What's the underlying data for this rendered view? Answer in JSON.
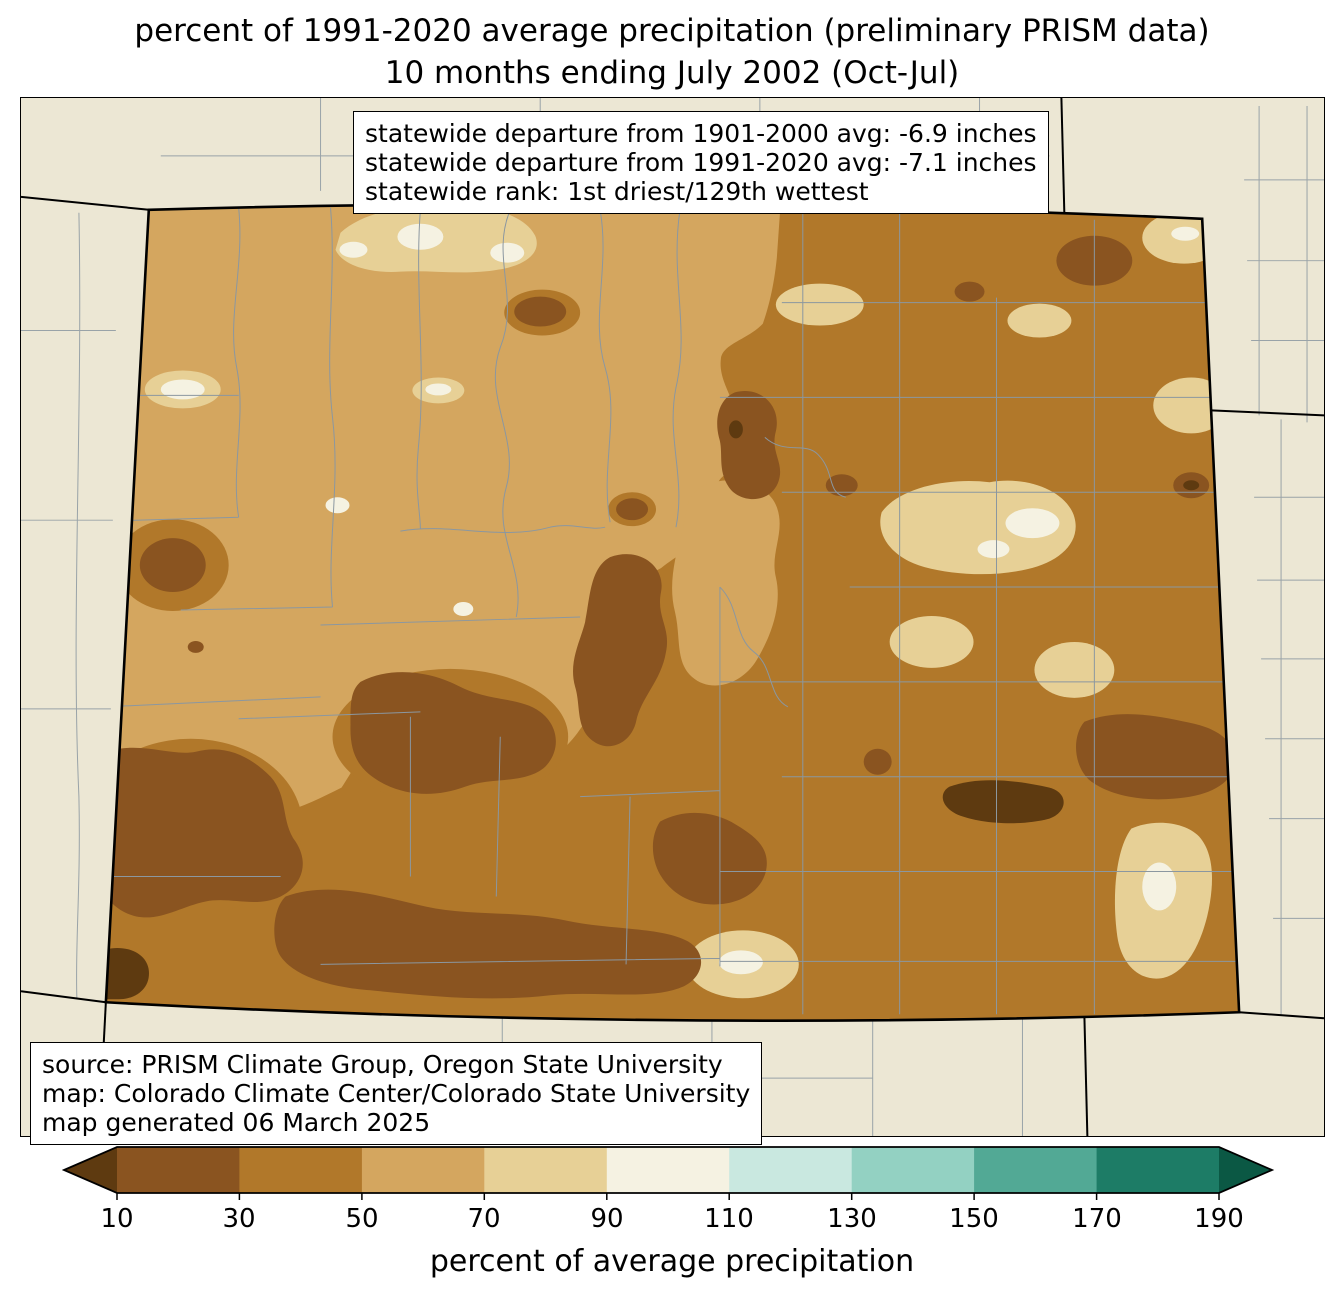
{
  "title": {
    "line1": "percent of 1991-2020 average precipitation (preliminary PRISM data)",
    "line2": "10 months ending July 2002 (Oct-Jul)"
  },
  "stats_box": {
    "lines": [
      "statewide departure from 1901-2000 avg: -6.9 inches",
      "statewide departure from 1991-2020 avg: -7.1 inches",
      "statewide rank: 1st driest/129th wettest"
    ]
  },
  "source_box": {
    "lines": [
      "source: PRISM Climate Group, Oregon State University",
      "map: Colorado Climate Center/Colorado State University",
      "map generated 06 March 2025"
    ]
  },
  "map": {
    "background": "#ece7d4",
    "county_line_color": "#8b97a0",
    "state_line_color": "#000000"
  },
  "colorbar": {
    "label": "percent of average precipitation",
    "ticks": [
      "10",
      "30",
      "50",
      "70",
      "90",
      "110",
      "130",
      "150",
      "170",
      "190"
    ],
    "segment_order": [
      "under10",
      "p10_30",
      "p30_50",
      "p50_70",
      "p70_90",
      "p90_110",
      "p110_130",
      "p130_150",
      "p150_170",
      "p170_190",
      "over190"
    ],
    "palette": {
      "under10": "#5e3a10",
      "p10_30": "#8a5420",
      "p30_50": "#b1782a",
      "p50_70": "#d4a65f",
      "p70_90": "#e7d096",
      "p90_110": "#f5f2e2",
      "p110_130": "#c9e8e0",
      "p130_150": "#93d1c2",
      "p150_170": "#52a995",
      "p170_190": "#1d7c66",
      "over190": "#0b5844"
    }
  }
}
